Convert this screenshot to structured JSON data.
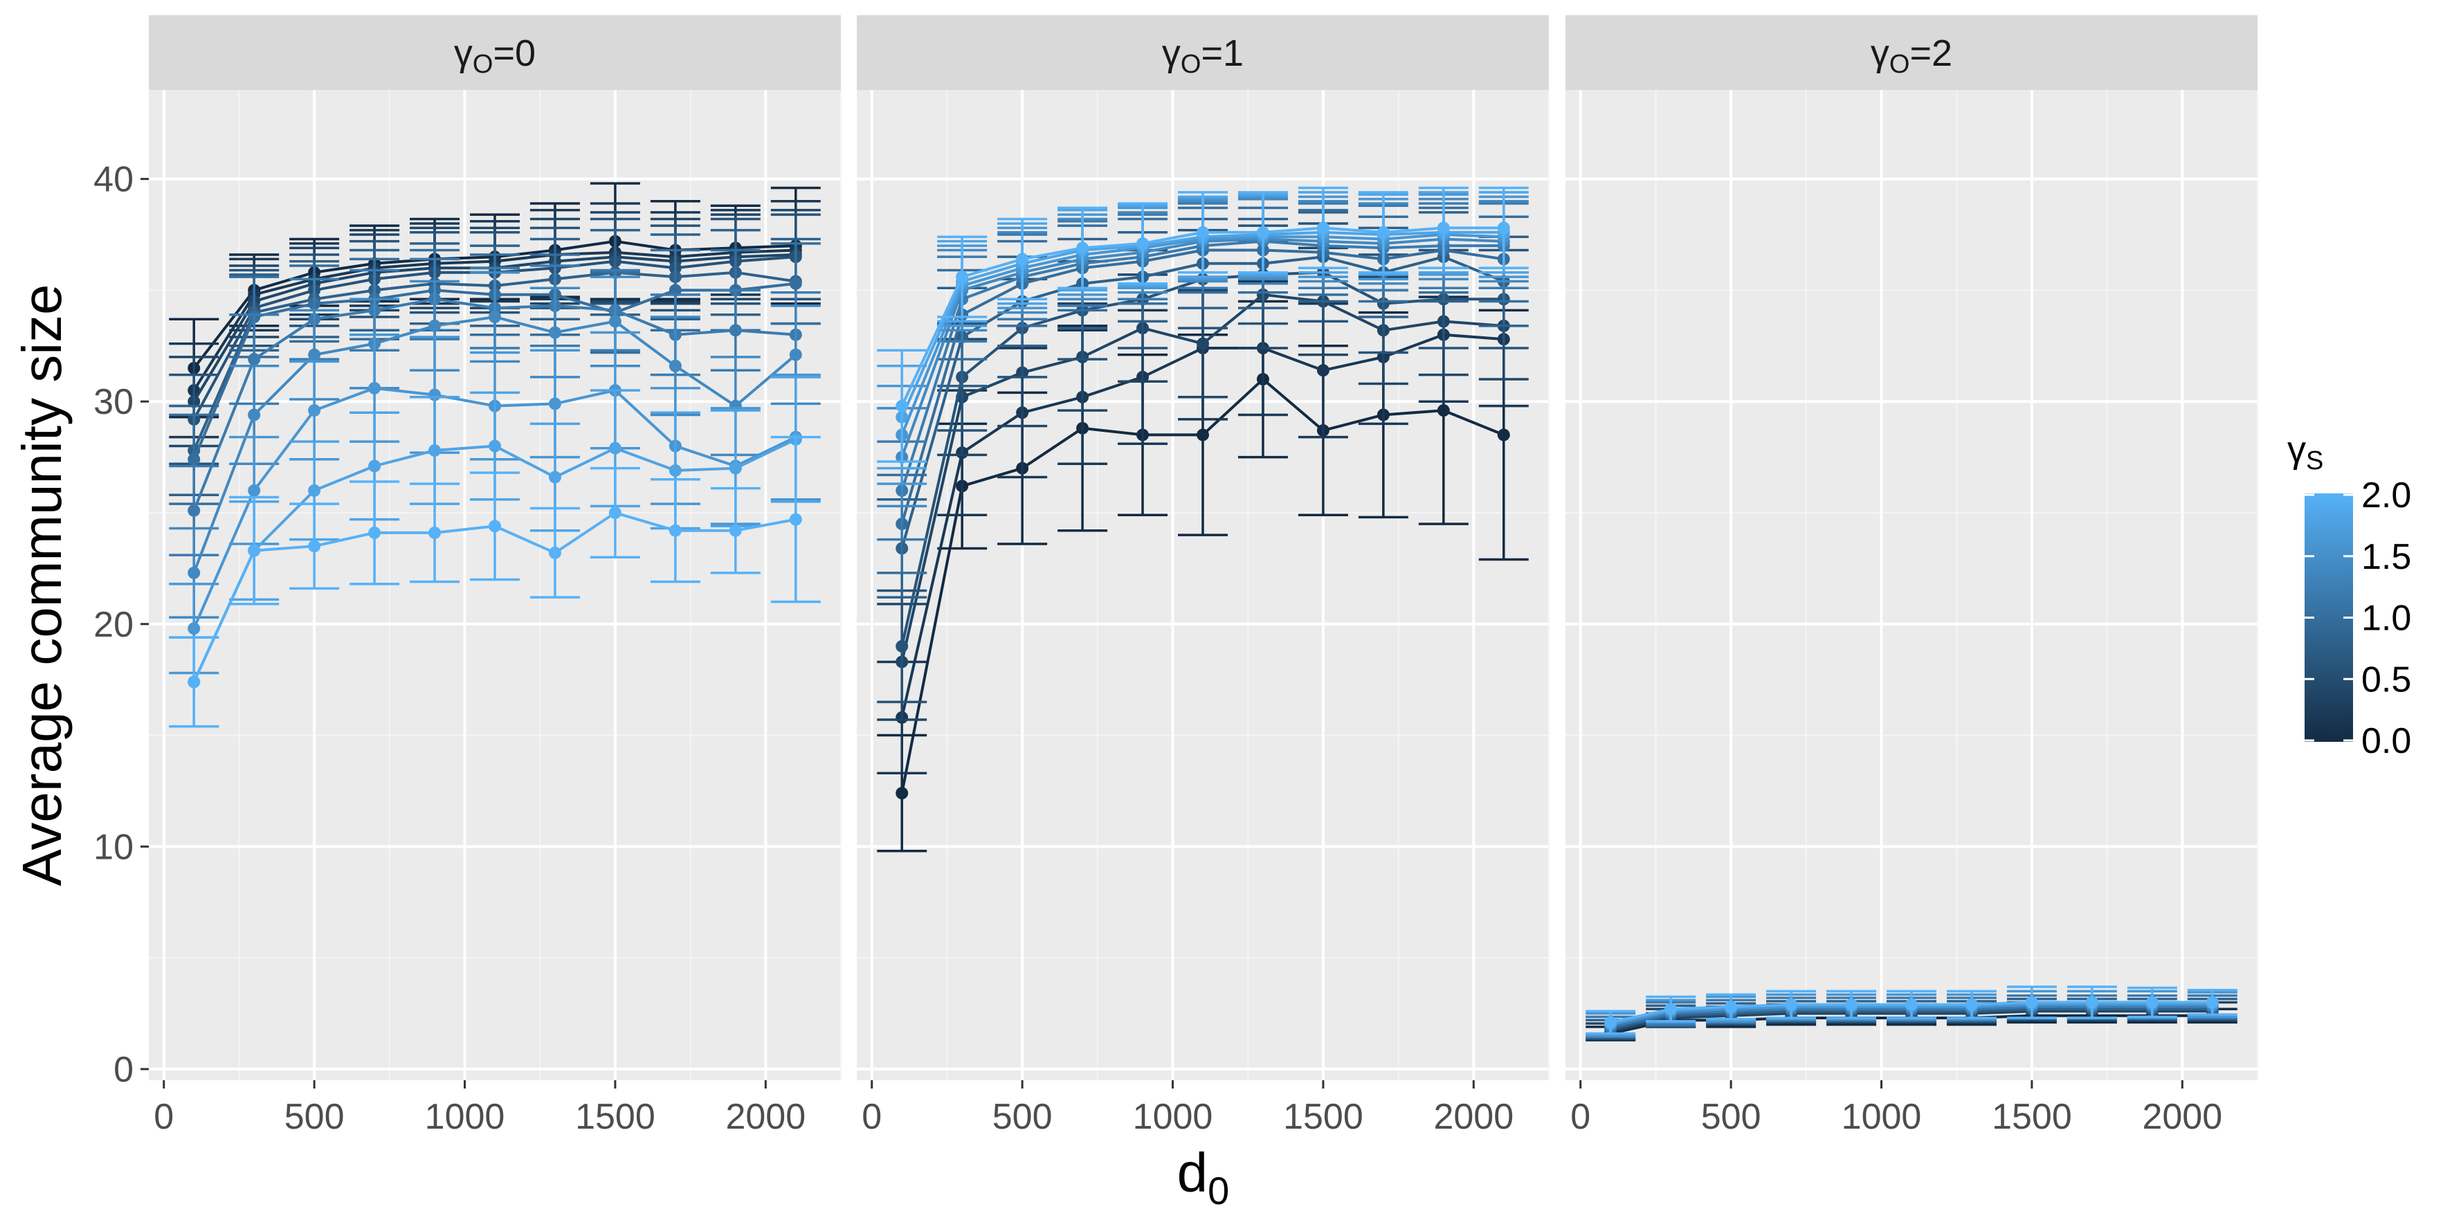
{
  "chart_data": {
    "type": "line",
    "xlabel": "d",
    "xlabel_sub": "0",
    "ylabel": "Average community size",
    "x_ticks": [
      0,
      500,
      1000,
      1500,
      2000
    ],
    "y_ticks": [
      0,
      10,
      20,
      30,
      40
    ],
    "xlim": [
      -50,
      2250
    ],
    "ylim": [
      -0.5,
      44
    ],
    "legend": {
      "title": "γ",
      "title_sub": "S",
      "position": "right",
      "ticks": [
        "0.0",
        "0.5",
        "1.0",
        "1.5",
        "2.0"
      ],
      "color_low": "#132B43",
      "color_high": "#56B1F7"
    },
    "x": [
      100,
      300,
      500,
      700,
      900,
      1100,
      1300,
      1500,
      1700,
      1900,
      2100
    ],
    "facets": [
      {
        "label": "γ",
        "label_sub": "O",
        "label_value": "=0",
        "series": [
          {
            "gamma_s": 0.0,
            "values": [
              31.5,
              35.0,
              35.8,
              36.2,
              36.4,
              36.5,
              36.8,
              37.2,
              36.8,
              36.9,
              37.0
            ],
            "err": [
              2.2,
              1.6,
              1.5,
              1.7,
              1.8,
              1.9,
              2.1,
              2.6,
              2.2,
              1.9,
              2.6
            ]
          },
          {
            "gamma_s": 0.2,
            "values": [
              30.5,
              34.8,
              35.5,
              36.0,
              36.2,
              36.3,
              36.6,
              36.7,
              36.5,
              36.7,
              36.8
            ],
            "err": [
              2.1,
              1.6,
              1.6,
              1.7,
              1.8,
              1.8,
              2.0,
              2.2,
              2.0,
              1.9,
              2.2
            ]
          },
          {
            "gamma_s": 0.4,
            "values": [
              30.0,
              34.5,
              35.3,
              35.8,
              36.0,
              36.0,
              36.3,
              36.5,
              36.3,
              36.5,
              36.6
            ],
            "err": [
              2.0,
              1.6,
              1.6,
              1.7,
              1.8,
              1.8,
              1.9,
              2.0,
              1.9,
              1.9,
              2.0
            ]
          },
          {
            "gamma_s": 0.6,
            "values": [
              29.2,
              34.2,
              35.0,
              35.5,
              35.8,
              35.8,
              36.0,
              36.3,
              36.0,
              36.3,
              36.5
            ],
            "err": [
              2.0,
              1.7,
              1.6,
              1.7,
              1.8,
              1.8,
              1.8,
              1.9,
              1.9,
              1.9,
              1.9
            ]
          },
          {
            "gamma_s": 0.8,
            "values": [
              27.8,
              34.0,
              34.6,
              35.0,
              35.3,
              35.2,
              35.5,
              35.8,
              35.6,
              35.8,
              35.4
            ],
            "err": [
              2.0,
              1.7,
              1.7,
              1.8,
              1.8,
              1.8,
              1.8,
              1.9,
              1.9,
              1.9,
              1.9
            ]
          },
          {
            "gamma_s": 1.0,
            "values": [
              27.4,
              33.8,
              34.4,
              34.6,
              35.0,
              34.8,
              34.8,
              34.0,
              35.0,
              35.0,
              35.3
            ],
            "err": [
              2.0,
              1.8,
              1.7,
              1.8,
              1.8,
              1.8,
              1.8,
              1.8,
              1.8,
              1.8,
              1.8
            ]
          },
          {
            "gamma_s": 1.2,
            "values": [
              25.1,
              31.9,
              33.7,
              34.1,
              34.6,
              34.2,
              34.3,
              34.1,
              33.0,
              33.2,
              33.0
            ],
            "err": [
              2.0,
              2.0,
              1.8,
              1.8,
              1.8,
              1.8,
              1.8,
              1.8,
              1.8,
              1.8,
              1.9
            ]
          },
          {
            "gamma_s": 1.4,
            "values": [
              22.3,
              29.4,
              32.1,
              32.6,
              33.4,
              33.8,
              33.1,
              33.6,
              31.6,
              29.8,
              32.1
            ],
            "err": [
              2.0,
              2.2,
              2.0,
              2.0,
              2.0,
              2.0,
              2.0,
              2.0,
              2.2,
              2.2,
              2.2
            ]
          },
          {
            "gamma_s": 1.6,
            "values": [
              19.8,
              26.0,
              29.6,
              30.6,
              30.3,
              29.8,
              29.9,
              30.5,
              28.0,
              27.1,
              28.4
            ],
            "err": [
              2.0,
              2.4,
              2.2,
              2.4,
              2.6,
              2.4,
              2.4,
              2.6,
              2.6,
              2.6,
              2.8
            ]
          },
          {
            "gamma_s": 1.8,
            "values": [
              17.4,
              23.3,
              26.0,
              27.1,
              27.8,
              28.0,
              26.6,
              27.9,
              26.9,
              27.0,
              28.3
            ],
            "err": [
              2.0,
              2.2,
              2.2,
              2.4,
              2.4,
              2.4,
              2.4,
              2.6,
              2.6,
              2.6,
              2.8
            ]
          },
          {
            "gamma_s": 2.0,
            "values": [
              17.4,
              23.3,
              23.5,
              24.1,
              24.1,
              24.4,
              23.2,
              25.0,
              24.2,
              24.2,
              24.7
            ],
            "err": [
              2.0,
              2.4,
              1.9,
              2.3,
              2.2,
              2.4,
              2.0,
              2.0,
              2.3,
              1.9,
              3.7
            ]
          }
        ]
      },
      {
        "label": "γ",
        "label_sub": "O",
        "label_value": "=1",
        "series": [
          {
            "gamma_s": 0.0,
            "values": [
              12.4,
              26.2,
              27.0,
              28.8,
              28.5,
              28.5,
              31.0,
              28.7,
              29.4,
              29.6,
              28.5
            ],
            "err": [
              2.6,
              2.8,
              3.4,
              4.6,
              3.6,
              4.5,
              3.5,
              3.8,
              4.6,
              5.1,
              5.6
            ]
          },
          {
            "gamma_s": 0.2,
            "values": [
              15.8,
              27.7,
              29.5,
              30.2,
              31.1,
              32.4,
              32.4,
              31.4,
              32.0,
              33.0,
              32.8
            ],
            "err": [
              2.5,
              2.8,
              2.9,
              3.0,
              3.0,
              3.2,
              3.0,
              3.0,
              3.0,
              3.0,
              3.0
            ]
          },
          {
            "gamma_s": 0.4,
            "values": [
              18.3,
              30.2,
              31.3,
              32.0,
              33.3,
              32.6,
              34.8,
              34.5,
              33.2,
              33.6,
              33.4
            ],
            "err": [
              2.6,
              2.6,
              2.4,
              2.4,
              2.4,
              2.4,
              2.4,
              2.4,
              2.4,
              2.4,
              2.4
            ]
          },
          {
            "gamma_s": 0.6,
            "values": [
              19.0,
              31.1,
              33.3,
              34.1,
              34.6,
              35.5,
              35.7,
              35.8,
              34.4,
              34.6,
              34.6
            ],
            "err": [
              2.5,
              2.4,
              2.2,
              2.2,
              2.2,
              2.2,
              2.2,
              2.2,
              2.2,
              2.2,
              2.2
            ]
          },
          {
            "gamma_s": 0.8,
            "values": [
              23.4,
              32.9,
              34.5,
              35.3,
              35.6,
              36.2,
              36.2,
              36.5,
              35.8,
              36.5,
              35.4
            ],
            "err": [
              2.2,
              2.2,
              2.0,
              2.0,
              2.0,
              2.0,
              2.0,
              2.0,
              2.0,
              2.0,
              2.0
            ]
          },
          {
            "gamma_s": 1.0,
            "values": [
              24.5,
              33.9,
              35.3,
              36.0,
              36.3,
              36.8,
              36.8,
              36.7,
              36.4,
              36.8,
              36.4
            ],
            "err": [
              2.2,
              2.0,
              1.9,
              1.9,
              1.9,
              1.9,
              1.9,
              1.9,
              1.9,
              1.9,
              1.9
            ]
          },
          {
            "gamma_s": 1.2,
            "values": [
              26.0,
              34.6,
              35.6,
              36.2,
              36.5,
              37.0,
              37.2,
              37.0,
              36.9,
              37.0,
              37.0
            ],
            "err": [
              2.2,
              1.9,
              1.9,
              1.9,
              1.9,
              1.9,
              1.9,
              1.9,
              1.9,
              1.9,
              1.9
            ]
          },
          {
            "gamma_s": 1.4,
            "values": [
              27.5,
              35.0,
              35.8,
              36.4,
              36.7,
              37.2,
              37.3,
              37.2,
              37.1,
              37.3,
              37.2
            ],
            "err": [
              2.2,
              1.8,
              1.8,
              1.8,
              1.8,
              1.8,
              1.8,
              1.8,
              1.8,
              1.8,
              1.8
            ]
          },
          {
            "gamma_s": 1.6,
            "values": [
              28.5,
              35.2,
              36.0,
              36.6,
              36.9,
              37.3,
              37.4,
              37.4,
              37.3,
              37.5,
              37.4
            ],
            "err": [
              2.2,
              1.8,
              1.8,
              1.8,
              1.8,
              1.8,
              1.8,
              1.8,
              1.8,
              1.8,
              1.8
            ]
          },
          {
            "gamma_s": 1.8,
            "values": [
              29.3,
              35.4,
              36.2,
              36.8,
              37.0,
              37.4,
              37.5,
              37.6,
              37.5,
              37.6,
              37.6
            ],
            "err": [
              2.3,
              1.8,
              1.8,
              1.8,
              1.8,
              1.8,
              1.8,
              1.8,
              1.8,
              1.8,
              1.8
            ]
          },
          {
            "gamma_s": 2.0,
            "values": [
              29.8,
              35.6,
              36.4,
              36.9,
              37.1,
              37.6,
              37.6,
              37.8,
              37.6,
              37.8,
              37.8
            ],
            "err": [
              2.5,
              1.8,
              1.8,
              1.8,
              1.8,
              1.8,
              1.8,
              1.8,
              1.8,
              1.8,
              1.8
            ]
          }
        ]
      },
      {
        "label": "γ",
        "label_sub": "O",
        "label_value": "=2",
        "series": [
          {
            "gamma_s": 0.0,
            "values": [
              1.6,
              2.2,
              2.2,
              2.3,
              2.3,
              2.3,
              2.3,
              2.4,
              2.4,
              2.4,
              2.4
            ],
            "err": [
              0.3,
              0.3,
              0.3,
              0.3,
              0.3,
              0.3,
              0.3,
              0.3,
              0.3,
              0.3,
              0.3
            ]
          },
          {
            "gamma_s": 0.4,
            "values": [
              1.7,
              2.3,
              2.4,
              2.5,
              2.5,
              2.5,
              2.5,
              2.6,
              2.6,
              2.6,
              2.6
            ],
            "err": [
              0.35,
              0.4,
              0.4,
              0.4,
              0.4,
              0.4,
              0.4,
              0.4,
              0.4,
              0.4,
              0.4
            ]
          },
          {
            "gamma_s": 0.8,
            "values": [
              1.8,
              2.4,
              2.5,
              2.6,
              2.6,
              2.6,
              2.6,
              2.7,
              2.7,
              2.7,
              2.7
            ],
            "err": [
              0.4,
              0.45,
              0.45,
              0.45,
              0.45,
              0.45,
              0.45,
              0.45,
              0.45,
              0.45,
              0.45
            ]
          },
          {
            "gamma_s": 1.2,
            "values": [
              1.9,
              2.5,
              2.6,
              2.7,
              2.7,
              2.7,
              2.7,
              2.8,
              2.8,
              2.8,
              2.8
            ],
            "err": [
              0.45,
              0.5,
              0.5,
              0.5,
              0.5,
              0.5,
              0.5,
              0.5,
              0.5,
              0.5,
              0.5
            ]
          },
          {
            "gamma_s": 1.6,
            "values": [
              2.0,
              2.6,
              2.7,
              2.8,
              2.8,
              2.8,
              2.8,
              2.9,
              2.9,
              2.9,
              2.9
            ],
            "err": [
              0.5,
              0.5,
              0.55,
              0.55,
              0.55,
              0.55,
              0.55,
              0.6,
              0.6,
              0.6,
              0.55
            ]
          },
          {
            "gamma_s": 2.0,
            "values": [
              2.1,
              2.7,
              2.8,
              2.9,
              2.9,
              2.9,
              2.9,
              3.0,
              3.0,
              3.0,
              3.0
            ],
            "err": [
              0.5,
              0.55,
              0.55,
              0.6,
              0.6,
              0.6,
              0.6,
              0.7,
              0.7,
              0.65,
              0.55
            ]
          }
        ]
      }
    ]
  }
}
